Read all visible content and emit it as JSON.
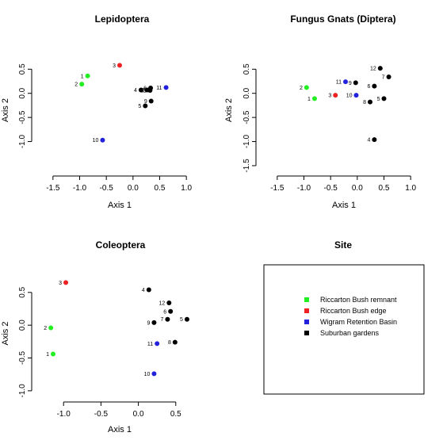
{
  "chart_data": [
    {
      "type": "scatter",
      "title": "Lepidoptera",
      "xlabel": "Axis 1",
      "ylabel": "Axis 2",
      "xlim": [
        -1.75,
        1.25
      ],
      "ylim": [
        -1.55,
        0.85
      ],
      "xticks": [
        -1.5,
        -1.0,
        -0.5,
        0.0,
        0.5,
        1.0
      ],
      "xtick_labels": [
        "-1.5",
        "-1.0",
        "-0.5",
        "0.0",
        "0.5",
        "1.0"
      ],
      "yticks": [
        -1.0,
        -0.5,
        0.0,
        0.5
      ],
      "ytick_labels": [
        "-1.0",
        "-0.5",
        "0.0",
        "0.5"
      ],
      "points": [
        {
          "label": "1",
          "site": "Riccarton Bush remnant",
          "x": -0.85,
          "y": 0.36
        },
        {
          "label": "2",
          "site": "Riccarton Bush remnant",
          "x": -0.96,
          "y": 0.19
        },
        {
          "label": "3",
          "site": "Riccarton Bush edge",
          "x": -0.25,
          "y": 0.58
        },
        {
          "label": "4",
          "site": "Suburban gardens",
          "x": 0.15,
          "y": 0.07
        },
        {
          "label": "8",
          "site": "Suburban gardens",
          "x": 0.26,
          "y": 0.07
        },
        {
          "label": "7",
          "site": "Suburban gardens",
          "x": 0.3,
          "y": 0.07
        },
        {
          "label": "6",
          "site": "Suburban gardens",
          "x": 0.33,
          "y": 0.11
        },
        {
          "label": "12",
          "site": "Suburban gardens",
          "x": 0.32,
          "y": 0.06
        },
        {
          "label": "11",
          "site": "Wigram Retention Basin",
          "x": 0.62,
          "y": 0.12
        },
        {
          "label": "9",
          "site": "Suburban gardens",
          "x": 0.34,
          "y": -0.16
        },
        {
          "label": "5",
          "site": "Suburban gardens",
          "x": 0.23,
          "y": -0.26
        },
        {
          "label": "10",
          "site": "Wigram Retention Basin",
          "x": -0.57,
          "y": -0.97
        }
      ]
    },
    {
      "type": "scatter",
      "title": "Fungus Gnats (Diptera)",
      "xlabel": "Axis 1",
      "ylabel": "Axis 2",
      "xlim": [
        -1.75,
        1.25
      ],
      "ylim": [
        -1.55,
        0.85
      ],
      "xticks": [
        -1.5,
        -1.0,
        -0.5,
        0.0,
        0.5,
        1.0
      ],
      "xtick_labels": [
        "-1.5",
        "-1.0",
        "-0.5",
        "0.0",
        "0.5",
        "1.0"
      ],
      "yticks": [
        -1.5,
        -1.0,
        -0.5,
        0.0,
        0.5
      ],
      "ytick_labels": [
        "-1.5",
        "-1.0",
        "-0.5",
        "0.0",
        "0.5"
      ],
      "points": [
        {
          "label": "12",
          "site": "Suburban gardens",
          "x": 0.43,
          "y": 0.52
        },
        {
          "label": "7",
          "site": "Suburban gardens",
          "x": 0.59,
          "y": 0.34
        },
        {
          "label": "11",
          "site": "Wigram Retention Basin",
          "x": -0.22,
          "y": 0.24
        },
        {
          "label": "6",
          "site": "Suburban gardens",
          "x": 0.32,
          "y": 0.15
        },
        {
          "label": "2",
          "site": "Riccarton Bush remnant",
          "x": -0.95,
          "y": 0.12
        },
        {
          "label": "3",
          "site": "Riccarton Bush edge",
          "x": -0.41,
          "y": -0.04
        },
        {
          "label": "10",
          "site": "Wigram Retention Basin",
          "x": -0.02,
          "y": -0.04
        },
        {
          "label": "1",
          "site": "Riccarton Bush remnant",
          "x": -0.8,
          "y": -0.11
        },
        {
          "label": "5",
          "site": "Suburban gardens",
          "x": 0.5,
          "y": -0.11
        },
        {
          "label": "8",
          "site": "Suburban gardens",
          "x": 0.24,
          "y": -0.18
        },
        {
          "label": "9",
          "site": "Suburban gardens",
          "x": -0.03,
          "y": 0.22
        },
        {
          "label": "4",
          "site": "Suburban gardens",
          "x": 0.32,
          "y": -0.96
        }
      ]
    },
    {
      "type": "scatter",
      "title": "Coleoptera",
      "xlabel": "Axis 1",
      "ylabel": "Axis 2",
      "xlim": [
        -1.32,
        0.82
      ],
      "ylim": [
        -1.05,
        0.8
      ],
      "xticks": [
        -1.0,
        -0.5,
        0.0,
        0.5
      ],
      "xtick_labels": [
        "-1.0",
        "-0.5",
        "0.0",
        "0.5"
      ],
      "yticks": [
        -1.0,
        -0.5,
        0.0,
        0.5
      ],
      "ytick_labels": [
        "-1.0",
        "-0.5",
        "0.0",
        "0.5"
      ],
      "points": [
        {
          "label": "3",
          "site": "Riccarton Bush edge",
          "x": -0.97,
          "y": 0.65
        },
        {
          "label": "2",
          "site": "Riccarton Bush remnant",
          "x": -1.17,
          "y": -0.04
        },
        {
          "label": "1",
          "site": "Riccarton Bush remnant",
          "x": -1.14,
          "y": -0.44
        },
        {
          "label": "4",
          "site": "Suburban gardens",
          "x": 0.14,
          "y": 0.54
        },
        {
          "label": "12",
          "site": "Suburban gardens",
          "x": 0.41,
          "y": 0.34
        },
        {
          "label": "6",
          "site": "Suburban gardens",
          "x": 0.43,
          "y": 0.21
        },
        {
          "label": "7",
          "site": "Suburban gardens",
          "x": 0.39,
          "y": 0.09
        },
        {
          "label": "5",
          "site": "Suburban gardens",
          "x": 0.65,
          "y": 0.09
        },
        {
          "label": "9",
          "site": "Suburban gardens",
          "x": 0.21,
          "y": 0.04
        },
        {
          "label": "8",
          "site": "Suburban gardens",
          "x": 0.49,
          "y": -0.26
        },
        {
          "label": "11",
          "site": "Wigram Retention Basin",
          "x": 0.25,
          "y": -0.28
        },
        {
          "label": "10",
          "site": "Wigram Retention Basin",
          "x": 0.21,
          "y": -0.74
        }
      ]
    }
  ],
  "legend": {
    "title": "Site",
    "placement": "bottom-right panel",
    "entries": [
      {
        "name": "Riccarton Bush remnant",
        "color": "#22ee22"
      },
      {
        "name": "Riccarton Bush edge",
        "color": "#ee2222"
      },
      {
        "name": "Wigram Retention Basin",
        "color": "#2222dd"
      },
      {
        "name": "Suburban gardens",
        "color": "#000000"
      }
    ]
  }
}
